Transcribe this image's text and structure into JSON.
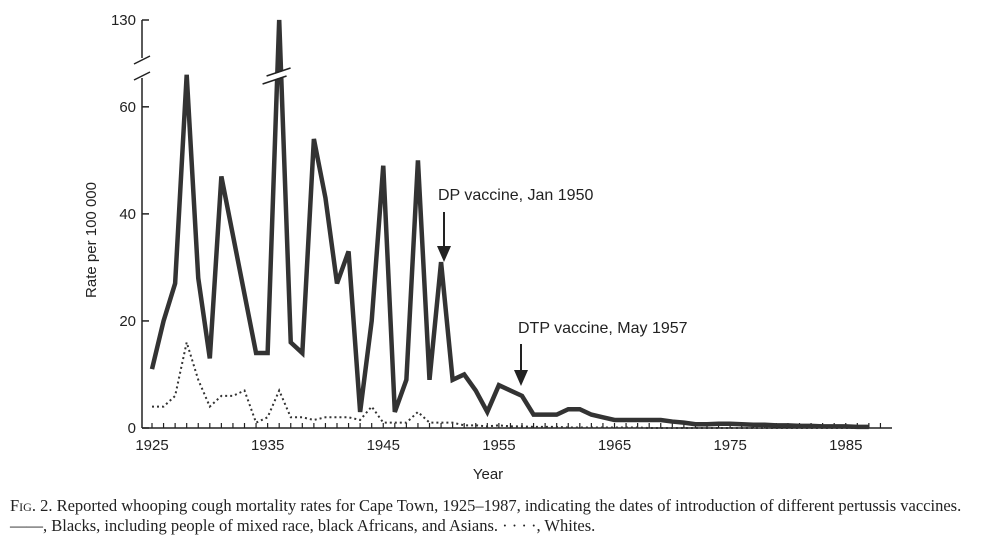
{
  "chart_data": {
    "type": "line",
    "title": "",
    "xlabel": "Year",
    "ylabel": "Rate per 100 000",
    "xlim": [
      1925,
      1989
    ],
    "ylim": [
      0,
      68
    ],
    "y_break": {
      "lower_top": 68,
      "upper_label": 130
    },
    "x_ticks": [
      1925,
      1935,
      1945,
      1955,
      1965,
      1975,
      1985
    ],
    "y_ticks": [
      0,
      20,
      40,
      60
    ],
    "y_tick_upper": 130,
    "grid": false,
    "series": [
      {
        "name": "Blacks, including people of mixed race, black Africans, and Asians",
        "style": "solid",
        "color": "#333333",
        "points": [
          [
            1925,
            11
          ],
          [
            1926,
            20
          ],
          [
            1927,
            27
          ],
          [
            1928,
            66
          ],
          [
            1929,
            28
          ],
          [
            1930,
            13
          ],
          [
            1931,
            47
          ],
          [
            1932,
            36
          ],
          [
            1933,
            25
          ],
          [
            1934,
            14
          ],
          [
            1935,
            14
          ],
          [
            1936,
            130
          ],
          [
            1937,
            16
          ],
          [
            1938,
            14
          ],
          [
            1939,
            54
          ],
          [
            1940,
            43
          ],
          [
            1941,
            27
          ],
          [
            1942,
            33
          ],
          [
            1943,
            3
          ],
          [
            1944,
            20
          ],
          [
            1945,
            49
          ],
          [
            1946,
            3
          ],
          [
            1947,
            9
          ],
          [
            1948,
            50
          ],
          [
            1949,
            9
          ],
          [
            1950,
            31
          ],
          [
            1951,
            9
          ],
          [
            1952,
            10
          ],
          [
            1953,
            7
          ],
          [
            1954,
            3
          ],
          [
            1955,
            8
          ],
          [
            1956,
            7
          ],
          [
            1957,
            6
          ],
          [
            1958,
            2.5
          ],
          [
            1959,
            2.5
          ],
          [
            1960,
            2.5
          ],
          [
            1961,
            3.5
          ],
          [
            1962,
            3.5
          ],
          [
            1963,
            2.5
          ],
          [
            1964,
            2
          ],
          [
            1965,
            1.5
          ],
          [
            1966,
            1.5
          ],
          [
            1967,
            1.5
          ],
          [
            1968,
            1.5
          ],
          [
            1969,
            1.5
          ],
          [
            1970,
            1.2
          ],
          [
            1971,
            1
          ],
          [
            1972,
            0.7
          ],
          [
            1973,
            0.7
          ],
          [
            1974,
            0.8
          ],
          [
            1975,
            0.8
          ],
          [
            1976,
            0.7
          ],
          [
            1977,
            0.6
          ],
          [
            1978,
            0.6
          ],
          [
            1979,
            0.5
          ],
          [
            1980,
            0.5
          ],
          [
            1981,
            0.4
          ],
          [
            1982,
            0.4
          ],
          [
            1983,
            0.3
          ],
          [
            1984,
            0.3
          ],
          [
            1985,
            0.3
          ],
          [
            1986,
            0.2
          ],
          [
            1987,
            0.2
          ]
        ]
      },
      {
        "name": "Whites",
        "style": "dotted",
        "color": "#333333",
        "points": [
          [
            1925,
            4
          ],
          [
            1926,
            4
          ],
          [
            1927,
            6
          ],
          [
            1928,
            16
          ],
          [
            1929,
            9
          ],
          [
            1930,
            4
          ],
          [
            1931,
            6
          ],
          [
            1932,
            6
          ],
          [
            1933,
            7
          ],
          [
            1934,
            1
          ],
          [
            1935,
            2
          ],
          [
            1936,
            7
          ],
          [
            1937,
            2
          ],
          [
            1938,
            2
          ],
          [
            1939,
            1.5
          ],
          [
            1940,
            2
          ],
          [
            1941,
            2
          ],
          [
            1942,
            2
          ],
          [
            1943,
            1.5
          ],
          [
            1944,
            4
          ],
          [
            1945,
            1
          ],
          [
            1946,
            1
          ],
          [
            1947,
            1
          ],
          [
            1948,
            3
          ],
          [
            1949,
            1
          ],
          [
            1950,
            1
          ],
          [
            1951,
            1
          ],
          [
            1952,
            0.5
          ],
          [
            1953,
            0.5
          ],
          [
            1954,
            0.3
          ],
          [
            1955,
            0.5
          ],
          [
            1956,
            0.3
          ],
          [
            1957,
            0.3
          ],
          [
            1958,
            0.2
          ],
          [
            1959,
            0.2
          ],
          [
            1960,
            0.2
          ],
          [
            1961,
            0.1
          ],
          [
            1962,
            0.1
          ],
          [
            1963,
            0.1
          ],
          [
            1964,
            0.1
          ],
          [
            1965,
            0.1
          ],
          [
            1966,
            0.1
          ],
          [
            1967,
            0.1
          ],
          [
            1968,
            0
          ],
          [
            1969,
            0
          ],
          [
            1970,
            0
          ],
          [
            1971,
            0
          ],
          [
            1972,
            0
          ],
          [
            1973,
            0
          ],
          [
            1974,
            0
          ],
          [
            1975,
            0
          ],
          [
            1976,
            0
          ],
          [
            1977,
            0
          ],
          [
            1978,
            0
          ],
          [
            1979,
            0
          ],
          [
            1980,
            0
          ],
          [
            1981,
            0
          ],
          [
            1982,
            0
          ],
          [
            1983,
            0
          ],
          [
            1984,
            0
          ],
          [
            1985,
            0
          ],
          [
            1986,
            0
          ],
          [
            1987,
            0
          ]
        ]
      }
    ],
    "annotations": [
      {
        "text": "DP vaccine, Jan 1950",
        "x": 1950,
        "y": 31
      },
      {
        "text": "DTP vaccine, May 1957",
        "x": 1957,
        "y": 6
      }
    ]
  },
  "caption": {
    "label": "Fig. 2.",
    "text": "Reported whooping cough mortality rates for Cape Town, 1925–1987, indicating the dates of introduction of different pertussis vaccines. ——, Blacks, including people of mixed race, black Africans, and Asians. · · · ·, Whites."
  }
}
